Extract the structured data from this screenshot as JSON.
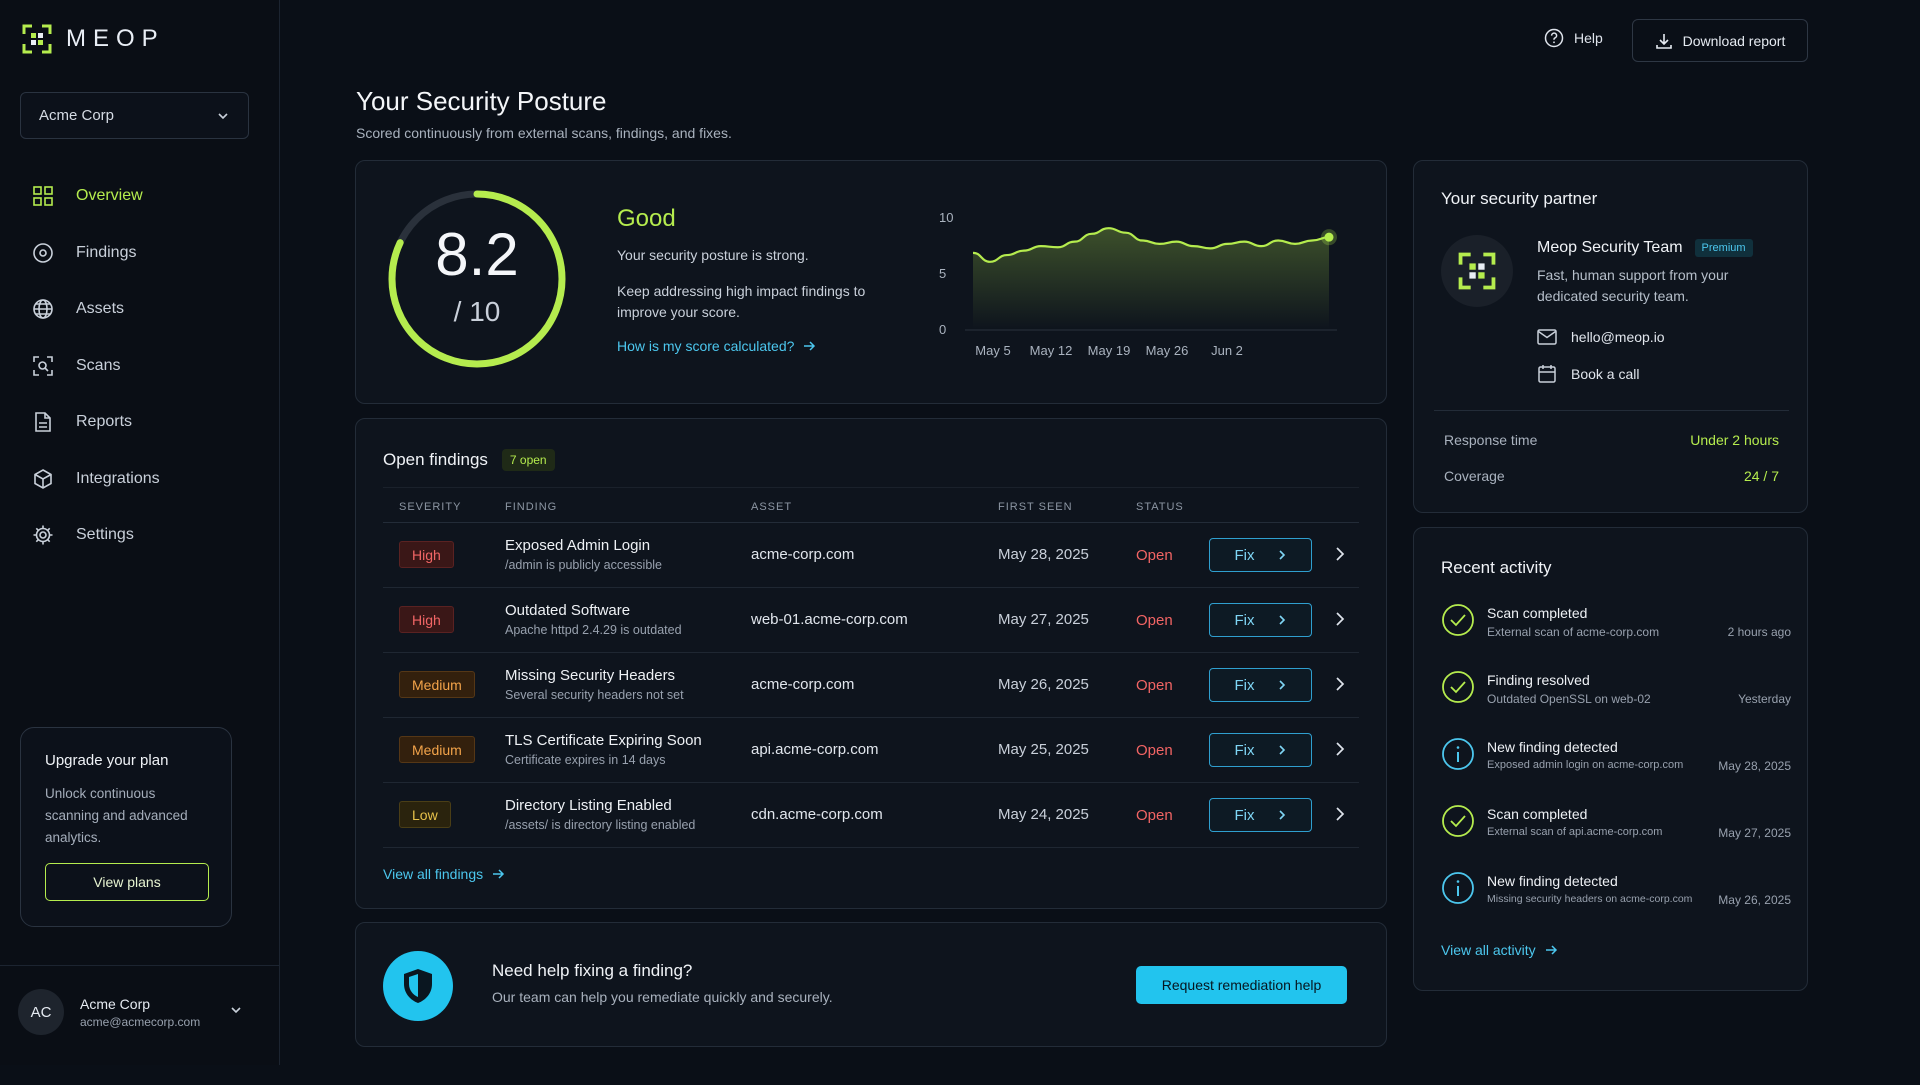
{
  "brand": {
    "name": "MEOP",
    "accent": "#b5ec4e",
    "link": "#4cc7ee"
  },
  "org_select": {
    "value": "Acme Corp"
  },
  "nav": [
    {
      "label": "Overview",
      "icon": "grid-icon",
      "active": true
    },
    {
      "label": "Findings",
      "icon": "target-icon"
    },
    {
      "label": "Assets",
      "icon": "globe-icon"
    },
    {
      "label": "Scans",
      "icon": "scan-icon"
    },
    {
      "label": "Reports",
      "icon": "document-icon"
    },
    {
      "label": "Integrations",
      "icon": "cube-icon"
    },
    {
      "label": "Settings",
      "icon": "gear-icon"
    }
  ],
  "upgrade": {
    "title": "Upgrade your plan",
    "text": "Unlock continuous scanning and advanced analytics.",
    "button": "View plans"
  },
  "account": {
    "initials": "AC",
    "name": "Acme Corp",
    "email": "acme@acmecorp.com"
  },
  "topbar": {
    "help": "Help",
    "download": "Download report"
  },
  "page": {
    "title": "Your Security Posture",
    "subtitle": "Scored continuously from external scans, findings, and fixes."
  },
  "score": {
    "value": "8.2",
    "out_of": "/ 10",
    "fraction": 0.82,
    "grade": "Good",
    "line1": "Your security posture is strong.",
    "line2": "Keep addressing high impact findings to improve your score.",
    "link": "How is my score calculated?"
  },
  "chart_data": {
    "type": "area",
    "x_ticks": [
      "May 5",
      "May 12",
      "May 19",
      "May 26",
      "Jun 2"
    ],
    "y_ticks": [
      "10",
      "5",
      "0"
    ],
    "ylim": [
      0,
      10
    ],
    "grid": false,
    "series": [
      {
        "values": [
          6.8,
          6.0,
          6.6,
          7.0,
          7.4,
          7.3,
          7.8,
          8.5,
          9.0,
          8.6,
          7.9,
          7.6,
          7.8,
          7.4,
          7.2,
          7.6,
          7.8,
          7.4,
          7.9,
          7.6,
          7.9,
          8.2
        ]
      }
    ]
  },
  "findings": {
    "title": "Open findings",
    "badge": "7 open",
    "columns": [
      "SEVERITY",
      "FINDING",
      "ASSET",
      "FIRST SEEN",
      "STATUS"
    ],
    "rows": [
      {
        "severity": "High",
        "level": "high",
        "title": "Exposed Admin Login",
        "sub": "/admin is publicly accessible",
        "asset": "acme-corp.com",
        "date": "May 28, 2025",
        "status": "Open",
        "action": "Fix"
      },
      {
        "severity": "High",
        "level": "high",
        "title": "Outdated Software",
        "sub": "Apache httpd 2.4.29 is outdated",
        "asset": "web-01.acme-corp.com",
        "date": "May 27, 2025",
        "status": "Open",
        "action": "Fix"
      },
      {
        "severity": "Medium",
        "level": "medium",
        "title": "Missing Security Headers",
        "sub": "Several security headers not set",
        "asset": "acme-corp.com",
        "date": "May 26, 2025",
        "status": "Open",
        "action": "Fix"
      },
      {
        "severity": "Medium",
        "level": "medium",
        "title": "TLS Certificate Expiring Soon",
        "sub": "Certificate expires in 14 days",
        "asset": "api.acme-corp.com",
        "date": "May 25, 2025",
        "status": "Open",
        "action": "Fix"
      },
      {
        "severity": "Low",
        "level": "low",
        "title": "Directory Listing Enabled",
        "sub": "/assets/ is directory listing enabled",
        "asset": "cdn.acme-corp.com",
        "date": "May 24, 2025",
        "status": "Open",
        "action": "Fix"
      }
    ],
    "view_all": "View all findings"
  },
  "help": {
    "title": "Need help fixing a finding?",
    "text": "Our team can help you remediate quickly and securely.",
    "button": "Request remediation help"
  },
  "partner": {
    "title": "Your security partner",
    "team": "Meop Security Team",
    "badge": "Premium",
    "desc": "Fast, human support from your dedicated security team.",
    "email": "hello@meop.io",
    "call": "Book a call",
    "response_label": "Response time",
    "response_value": "Under 2 hours",
    "coverage_label": "Coverage",
    "coverage_value": "24 / 7"
  },
  "activity": {
    "title": "Recent activity",
    "items": [
      {
        "type": "check",
        "title": "Scan completed",
        "sub": "External scan of acme-corp.com",
        "time": "2 hours ago"
      },
      {
        "type": "check",
        "title": "Finding resolved",
        "sub": "Outdated OpenSSL on web-02",
        "time": "Yesterday"
      },
      {
        "type": "info",
        "title": "New finding detected",
        "sub": "Exposed admin login on acme-corp.com",
        "time": "May 28, 2025"
      },
      {
        "type": "check",
        "title": "Scan completed",
        "sub": "External scan of api.acme-corp.com",
        "time": "May 27, 2025"
      },
      {
        "type": "info",
        "title": "New finding detected",
        "sub": "Missing security headers on acme-corp.com",
        "time": "May 26, 2025"
      }
    ],
    "view_all": "View all activity"
  }
}
